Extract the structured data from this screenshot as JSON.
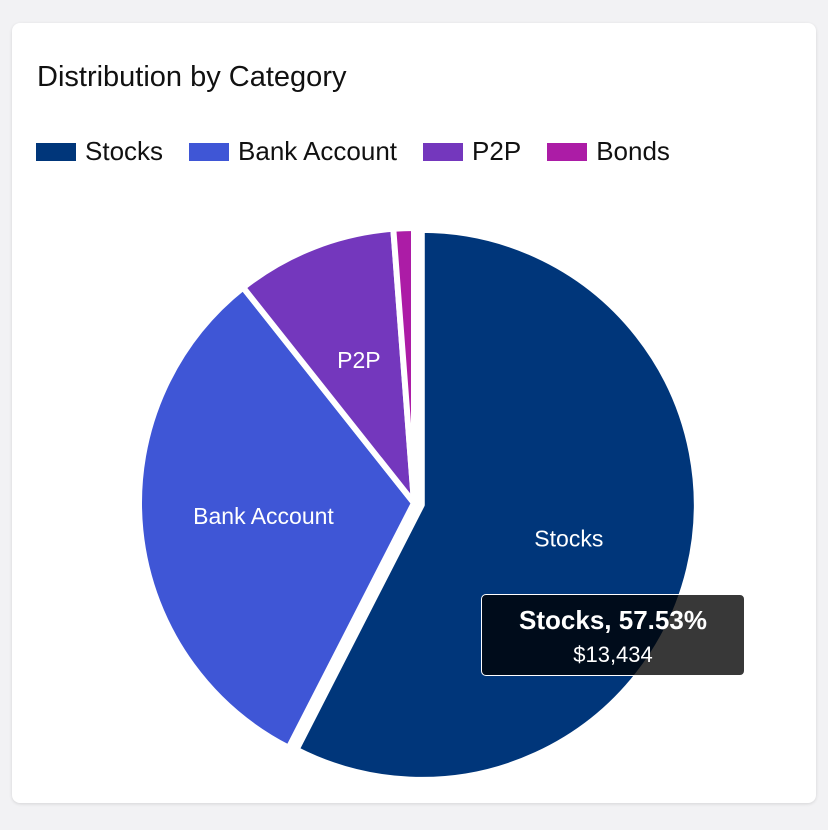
{
  "chart_data": {
    "type": "pie",
    "title": "Distribution by Category",
    "categories": [
      "Stocks",
      "Bank Account",
      "P2P",
      "Bonds"
    ],
    "values": [
      57.53,
      31.8,
      9.47,
      1.2
    ],
    "colors": [
      "#00367a",
      "#3f56d6",
      "#7437bd",
      "#ac1ca6"
    ],
    "slice_labels": [
      "Stocks",
      "Bank Account",
      "P2P",
      ""
    ],
    "highlighted": "Stocks",
    "legend_position": "top-left"
  },
  "legend": [
    {
      "label": "Stocks",
      "color": "#00367a"
    },
    {
      "label": "Bank Account",
      "color": "#3f56d6"
    },
    {
      "label": "P2P",
      "color": "#7437bd"
    },
    {
      "label": "Bonds",
      "color": "#ac1ca6"
    }
  ],
  "tooltip": {
    "title": "Stocks, 57.53%",
    "value": "$13,434"
  }
}
